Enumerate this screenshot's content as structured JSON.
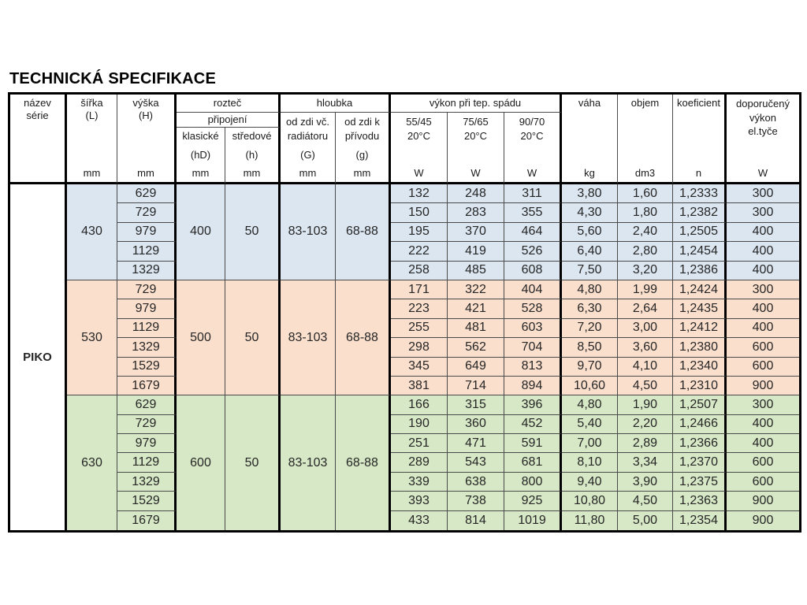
{
  "title": "TECHNICKÁ SPECIFIKACE",
  "table": {
    "header": {
      "nazev_serie": {
        "label": "název\nsérie"
      },
      "sirka": {
        "label": "šířka\n(L)",
        "unit": "mm"
      },
      "vyska": {
        "label": "výška\n(H)",
        "unit": "mm"
      },
      "roztec": {
        "label": "rozteč",
        "sublabel": "připojení",
        "klasicke": {
          "label": "klasické",
          "symbol": "(hD)",
          "unit": "mm"
        },
        "stredove": {
          "label": "středové",
          "symbol": "(h)",
          "unit": "mm"
        }
      },
      "hloubka": {
        "label": "hloubka",
        "od_zdi_radiator": {
          "label": "od zdi vč.\nradiátoru",
          "symbol": "(G)",
          "unit": "mm"
        },
        "od_zdi_privod": {
          "label": "od zdi k\npřívodu",
          "symbol": "(g)",
          "unit": "mm"
        }
      },
      "vykon": {
        "label": "výkon při tep.  spádu",
        "cols": [
          {
            "label": "55/45",
            "temp": "20°C",
            "unit": "W"
          },
          {
            "label": "75/65",
            "temp": "20°C",
            "unit": "W"
          },
          {
            "label": "90/70",
            "temp": "20°C",
            "unit": "W"
          }
        ]
      },
      "vaha": {
        "label": "váha",
        "unit": "kg"
      },
      "objem": {
        "label": "objem",
        "unit": "dm3"
      },
      "koeficient": {
        "label": "koeficient",
        "unit": "n"
      },
      "doporuceny": {
        "label": "doporučený\nvýkon\nel.tyče",
        "unit": "W"
      }
    },
    "body": {
      "series_name": "PIKO",
      "groups": [
        {
          "color": "#dce6f1",
          "sirka": "430",
          "klasicke": "400",
          "stredove": "50",
          "od_zdi_radiator": "83-103",
          "od_zdi_privod": "68-88",
          "rows": [
            {
              "vyska": "629",
              "w5545": "132",
              "w7565": "248",
              "w9070": "311",
              "vaha": "3,80",
              "objem": "1,60",
              "koef": "1,2333",
              "dop": "300"
            },
            {
              "vyska": "729",
              "w5545": "150",
              "w7565": "283",
              "w9070": "355",
              "vaha": "4,30",
              "objem": "1,80",
              "koef": "1,2382",
              "dop": "300"
            },
            {
              "vyska": "979",
              "w5545": "195",
              "w7565": "370",
              "w9070": "464",
              "vaha": "5,60",
              "objem": "2,40",
              "koef": "1,2505",
              "dop": "400"
            },
            {
              "vyska": "1129",
              "w5545": "222",
              "w7565": "419",
              "w9070": "526",
              "vaha": "6,40",
              "objem": "2,80",
              "koef": "1,2454",
              "dop": "400"
            },
            {
              "vyska": "1329",
              "w5545": "258",
              "w7565": "485",
              "w9070": "608",
              "vaha": "7,50",
              "objem": "3,20",
              "koef": "1,2386",
              "dop": "400"
            }
          ]
        },
        {
          "color": "#fbdfcd",
          "sirka": "530",
          "klasicke": "500",
          "stredove": "50",
          "od_zdi_radiator": "83-103",
          "od_zdi_privod": "68-88",
          "rows": [
            {
              "vyska": "729",
              "w5545": "171",
              "w7565": "322",
              "w9070": "404",
              "vaha": "4,80",
              "objem": "1,99",
              "koef": "1,2424",
              "dop": "300"
            },
            {
              "vyska": "979",
              "w5545": "223",
              "w7565": "421",
              "w9070": "528",
              "vaha": "6,30",
              "objem": "2,64",
              "koef": "1,2435",
              "dop": "400"
            },
            {
              "vyska": "1129",
              "w5545": "255",
              "w7565": "481",
              "w9070": "603",
              "vaha": "7,20",
              "objem": "3,00",
              "koef": "1,2412",
              "dop": "400"
            },
            {
              "vyska": "1329",
              "w5545": "298",
              "w7565": "562",
              "w9070": "704",
              "vaha": "8,50",
              "objem": "3,60",
              "koef": "1,2380",
              "dop": "600"
            },
            {
              "vyska": "1529",
              "w5545": "345",
              "w7565": "649",
              "w9070": "813",
              "vaha": "9,70",
              "objem": "4,10",
              "koef": "1,2340",
              "dop": "600"
            },
            {
              "vyska": "1679",
              "w5545": "381",
              "w7565": "714",
              "w9070": "894",
              "vaha": "10,60",
              "objem": "4,50",
              "koef": "1,2310",
              "dop": "900"
            }
          ]
        },
        {
          "color": "#d7e8c6",
          "sirka": "630",
          "klasicke": "600",
          "stredove": "50",
          "od_zdi_radiator": "83-103",
          "od_zdi_privod": "68-88",
          "rows": [
            {
              "vyska": "629",
              "w5545": "166",
              "w7565": "315",
              "w9070": "396",
              "vaha": "4,80",
              "objem": "1,90",
              "koef": "1,2507",
              "dop": "300"
            },
            {
              "vyska": "729",
              "w5545": "190",
              "w7565": "360",
              "w9070": "452",
              "vaha": "5,40",
              "objem": "2,20",
              "koef": "1,2466",
              "dop": "400"
            },
            {
              "vyska": "979",
              "w5545": "251",
              "w7565": "471",
              "w9070": "591",
              "vaha": "7,00",
              "objem": "2,89",
              "koef": "1,2366",
              "dop": "400"
            },
            {
              "vyska": "1129",
              "w5545": "289",
              "w7565": "543",
              "w9070": "681",
              "vaha": "8,10",
              "objem": "3,34",
              "koef": "1,2370",
              "dop": "600"
            },
            {
              "vyska": "1329",
              "w5545": "339",
              "w7565": "638",
              "w9070": "800",
              "vaha": "9,40",
              "objem": "3,90",
              "koef": "1,2375",
              "dop": "600"
            },
            {
              "vyska": "1529",
              "w5545": "393",
              "w7565": "738",
              "w9070": "925",
              "vaha": "10,80",
              "objem": "4,50",
              "koef": "1,2363",
              "dop": "900"
            },
            {
              "vyska": "1679",
              "w5545": "433",
              "w7565": "814",
              "w9070": "1019",
              "vaha": "11,80",
              "objem": "5,00",
              "koef": "1,2354",
              "dop": "900"
            }
          ]
        }
      ]
    }
  }
}
